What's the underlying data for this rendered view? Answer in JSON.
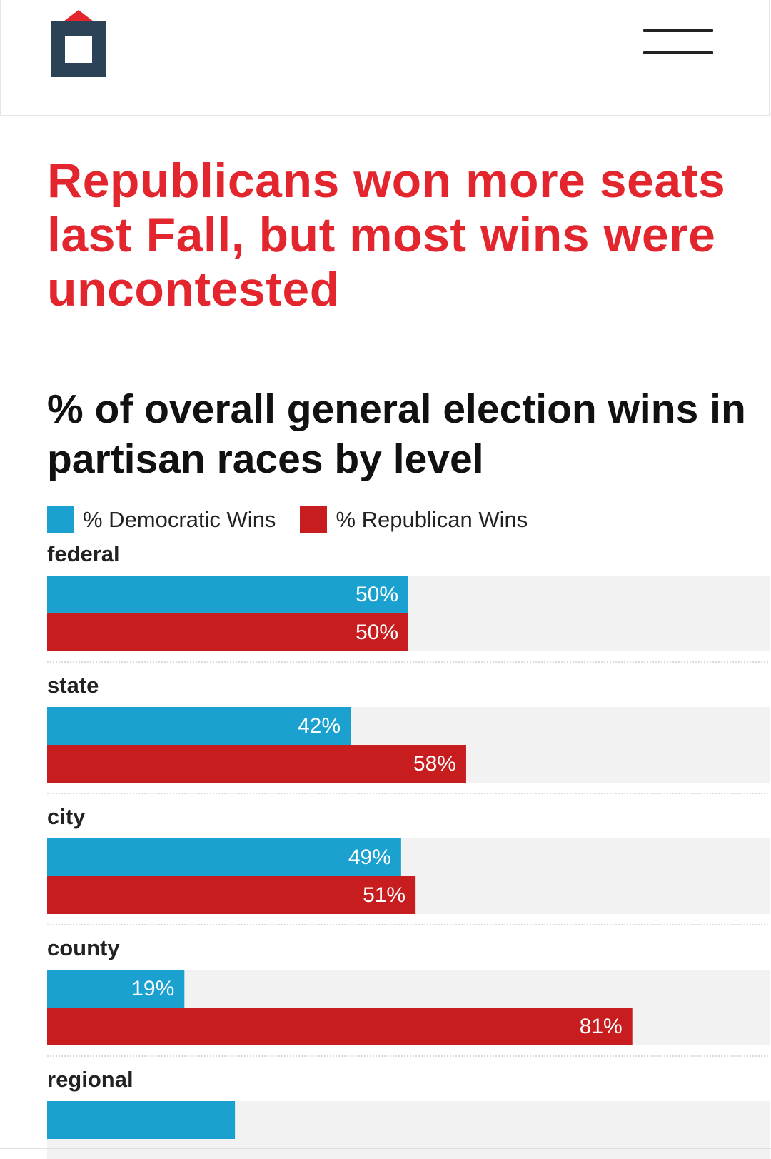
{
  "colors": {
    "headline": "#e3262e",
    "democratic": "#1ba1cf",
    "republican": "#c81d1f",
    "track": "#f2f2f2",
    "logo_frame": "#2b4257",
    "logo_roof": "#e3262e"
  },
  "header": {
    "logo_icon": "house-logo-icon",
    "menu_icon": "hamburger-menu-icon"
  },
  "article": {
    "headline": "Republicans won more seats last Fall, but most wins were uncontested"
  },
  "chart_data": {
    "type": "bar",
    "orientation": "horizontal",
    "title": "% of overall general election wins in partisan races by level",
    "legend": [
      "% Democratic Wins",
      "% Republican Wins"
    ],
    "legend_position": "top-left",
    "xlim": [
      0,
      100
    ],
    "categories": [
      "federal",
      "state",
      "city",
      "county",
      "regional"
    ],
    "series": [
      {
        "name": "% Democratic Wins",
        "values": [
          50,
          42,
          49,
          19,
          26
        ],
        "labels": [
          "50%",
          "42%",
          "49%",
          "19%",
          ""
        ]
      },
      {
        "name": "% Republican Wins",
        "values": [
          50,
          58,
          51,
          81,
          null
        ],
        "labels": [
          "50%",
          "58%",
          "51%",
          "81%",
          ""
        ]
      }
    ]
  }
}
